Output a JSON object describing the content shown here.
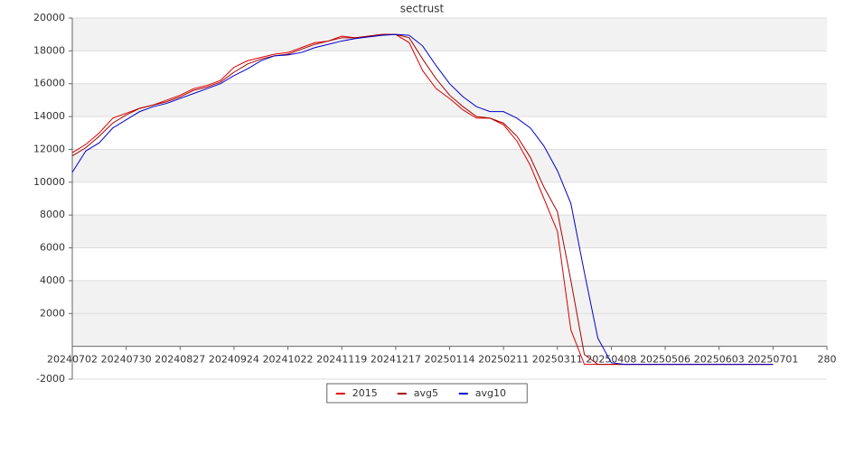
{
  "chart_data": {
    "type": "line",
    "title": "sectrust",
    "x": [
      "20240702",
      "20240709",
      "20240716",
      "20240723",
      "20240730",
      "20240806",
      "20240813",
      "20240820",
      "20240827",
      "20240903",
      "20240910",
      "20240917",
      "20240924",
      "20241001",
      "20241008",
      "20241015",
      "20241022",
      "20241029",
      "20241105",
      "20241112",
      "20241119",
      "20241126",
      "20241203",
      "20241210",
      "20241217",
      "20241224",
      "20241231",
      "20250107",
      "20250114",
      "20250121",
      "20250128",
      "20250204",
      "20250211",
      "20250218",
      "20250225",
      "20250304",
      "20250311",
      "20250318",
      "20250325",
      "20250401",
      "20250408",
      "20250415",
      "20250422",
      "20250429",
      "20250506",
      "20250513",
      "20250520",
      "20250527",
      "20250603",
      "20250610",
      "20250617",
      "20250624",
      "20250701"
    ],
    "series": [
      {
        "name": "2015",
        "color": "#dd0000",
        "values": [
          11800,
          12300,
          13000,
          13900,
          14200,
          14500,
          14700,
          15000,
          15300,
          15700,
          15900,
          16200,
          17000,
          17400,
          17600,
          17800,
          17900,
          18200,
          18500,
          18600,
          18900,
          18800,
          18900,
          19000,
          19000,
          18500,
          16800,
          15700,
          15100,
          14400,
          13900,
          13900,
          13500,
          12500,
          11000,
          9000,
          7000,
          1000,
          -1100,
          -1100,
          -1100,
          -1100,
          -1100,
          -1100,
          -1100,
          -1100,
          -1100,
          -1100,
          -1100,
          -1100,
          -1100,
          -1100,
          -1100
        ]
      },
      {
        "name": "avg5",
        "color": "#aa0000",
        "values": [
          11600,
          12100,
          12800,
          13600,
          14100,
          14500,
          14700,
          14900,
          15200,
          15600,
          15800,
          16100,
          16700,
          17200,
          17500,
          17700,
          17800,
          18100,
          18400,
          18600,
          18800,
          18800,
          18900,
          19000,
          19000,
          18800,
          17500,
          16300,
          15300,
          14600,
          14000,
          13900,
          13600,
          12800,
          11500,
          9700,
          8200,
          4000,
          -500,
          -1100,
          -1100,
          -1100,
          -1100,
          -1100,
          -1100,
          -1100,
          -1100,
          -1100,
          -1100,
          -1100,
          -1100,
          -1100,
          -1100
        ]
      },
      {
        "name": "avg10",
        "color": "#0000cc",
        "values": [
          10600,
          11900,
          12400,
          13300,
          13800,
          14300,
          14600,
          14800,
          15100,
          15400,
          15700,
          16000,
          16500,
          16900,
          17400,
          17700,
          17750,
          17900,
          18200,
          18400,
          18600,
          18750,
          18850,
          18950,
          19000,
          18950,
          18300,
          17100,
          16000,
          15200,
          14600,
          14300,
          14300,
          13900,
          13300,
          12200,
          10700,
          8700,
          4500,
          500,
          -1000,
          -1100,
          -1100,
          -1100,
          -1100,
          -1100,
          -1100,
          -1100,
          -1100,
          -1100,
          -1100,
          -1100,
          -1100
        ]
      }
    ],
    "xlim": [
      "20240702",
      "20250729"
    ],
    "xticks": [
      "20240702",
      "20240730",
      "20240827",
      "20240924",
      "20241022",
      "20241119",
      "20241217",
      "20250114",
      "20250211",
      "20250311",
      "20250408",
      "20250506",
      "20250603",
      "20250701",
      {
        "value": "20250729",
        "label": "280"
      }
    ],
    "ylim": [
      -2000,
      20000
    ],
    "yticks": [
      -2000,
      2000,
      4000,
      6000,
      8000,
      10000,
      12000,
      14000,
      16000,
      18000,
      20000
    ],
    "grid": true,
    "legend": "bottom"
  }
}
